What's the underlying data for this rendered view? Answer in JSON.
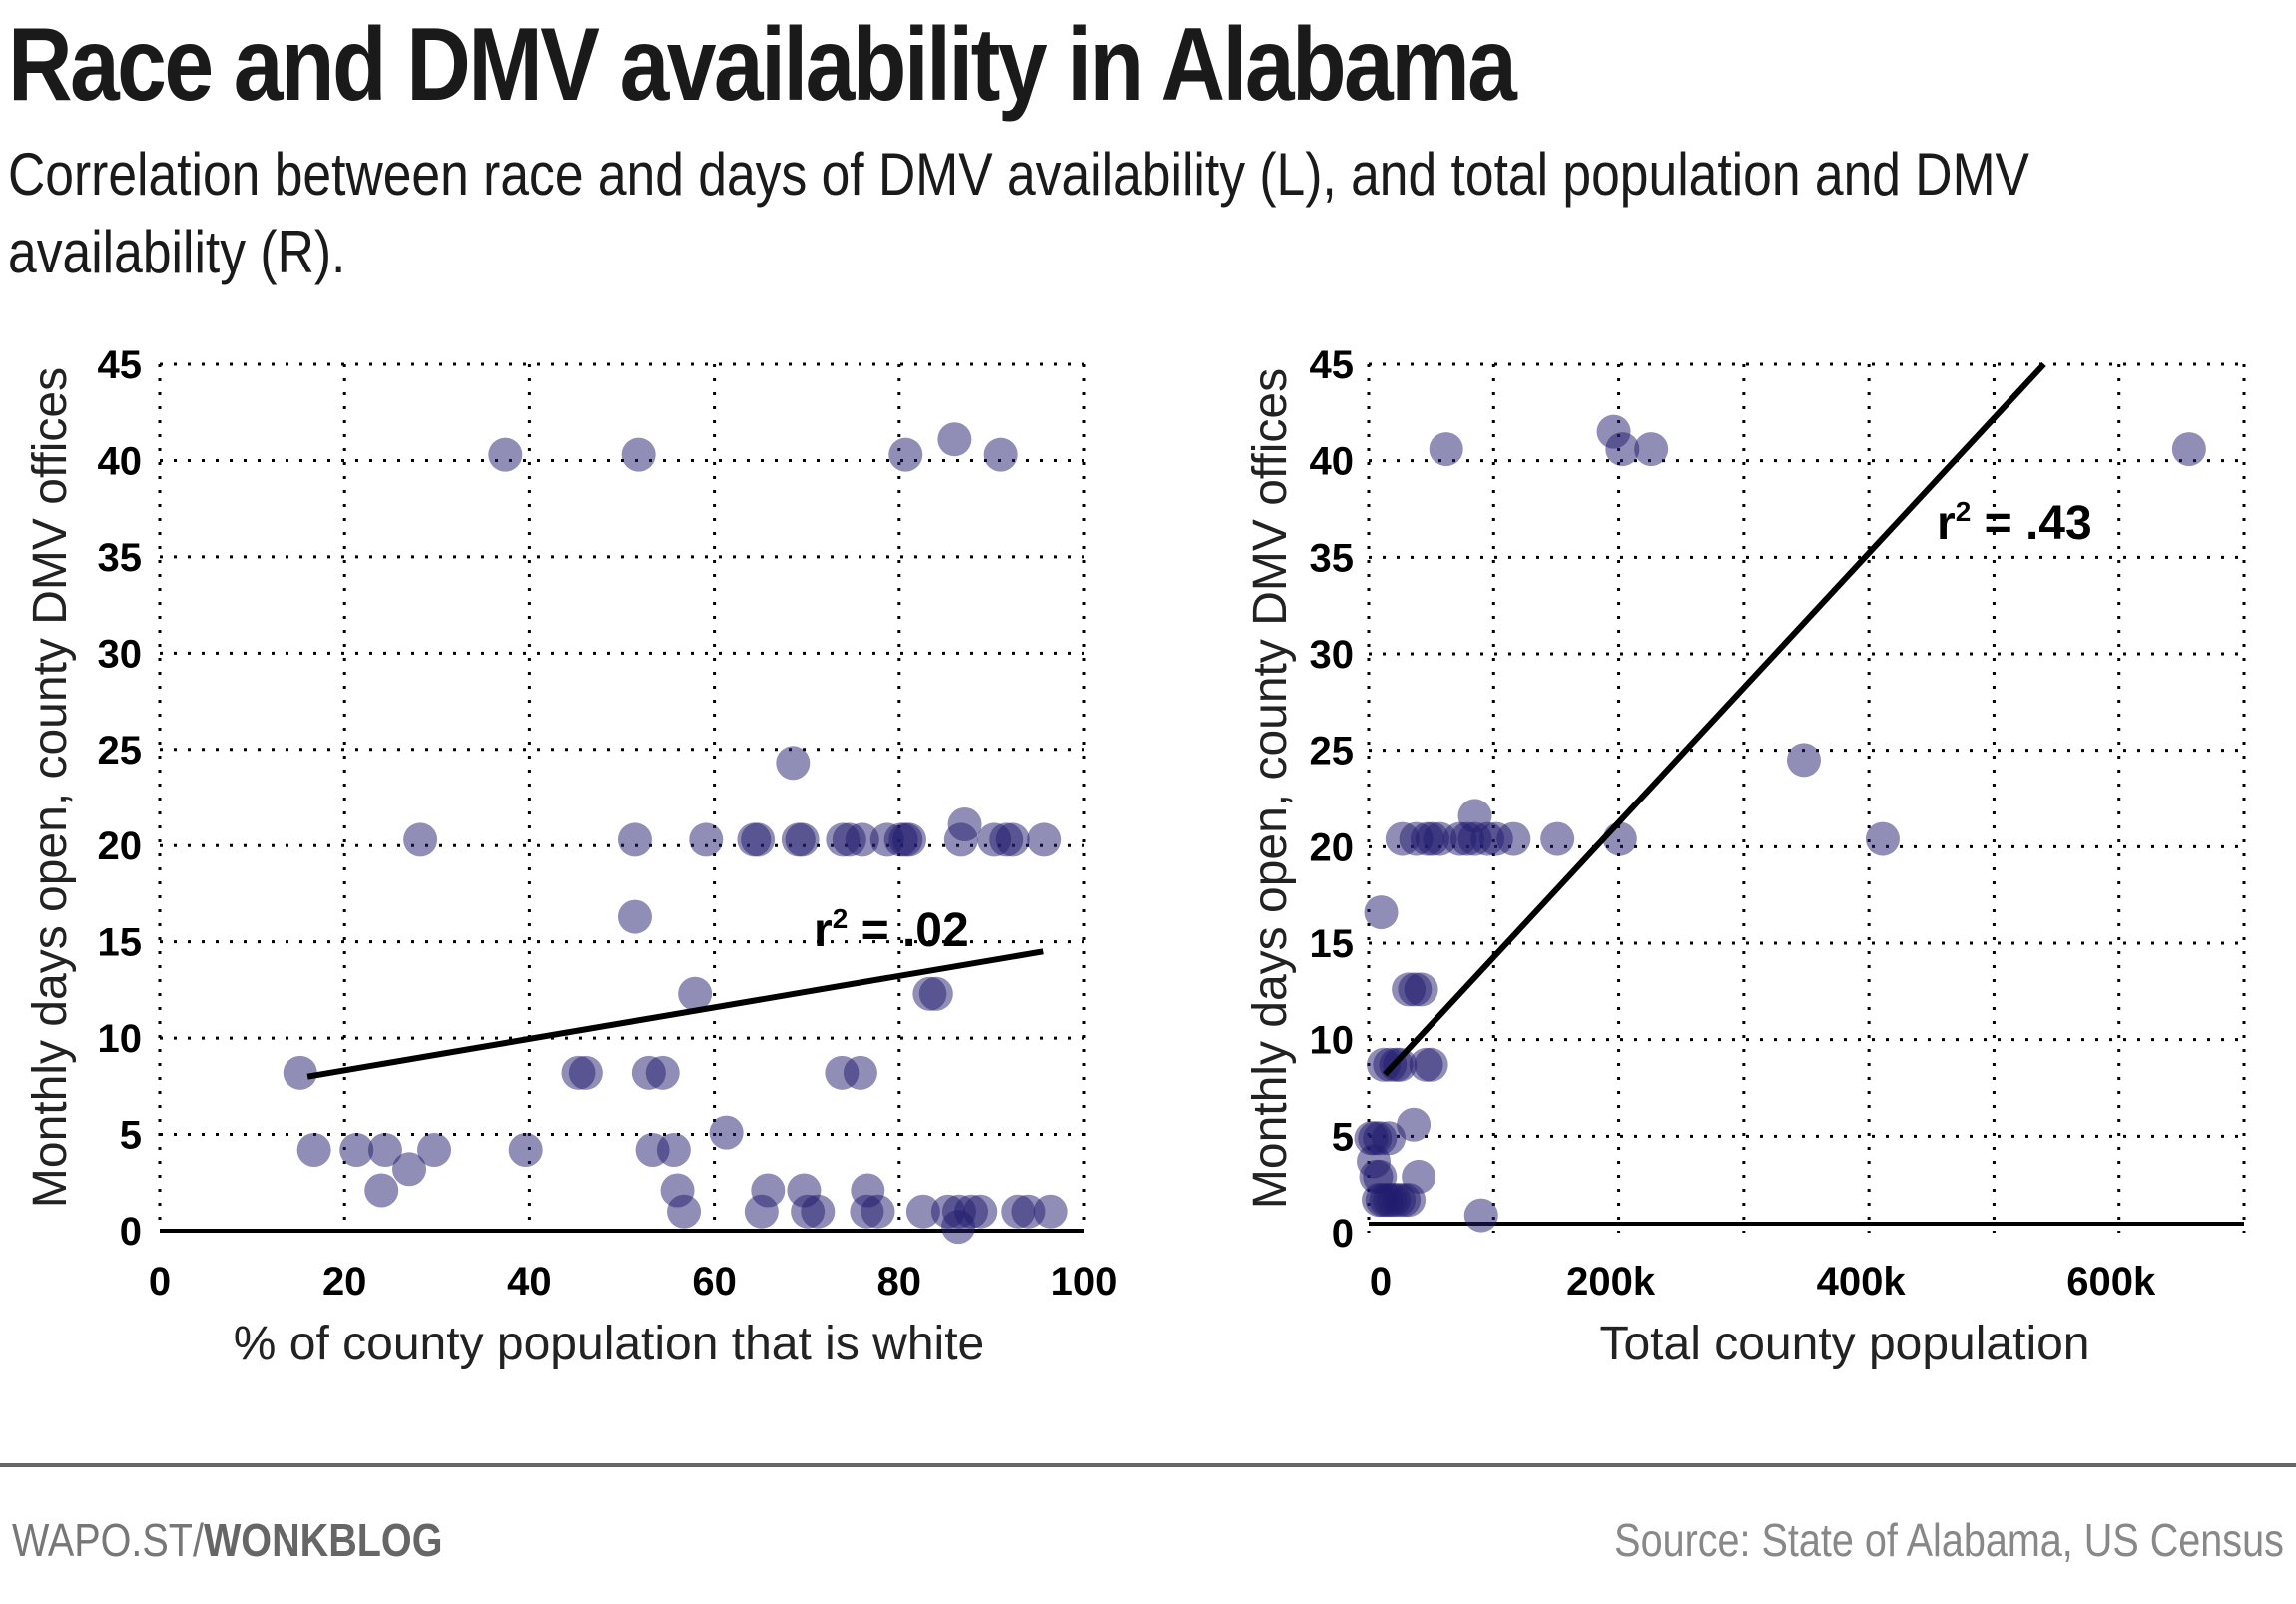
{
  "header": {
    "title": "Race and DMV availability in Alabama",
    "subtitle": "Correlation between race and days of DMV availability (L), and total population and DMV availability (R)."
  },
  "footer": {
    "credit_prefix": "WAPO.ST/",
    "credit_bold": "WONKBLOG",
    "source": "Source: State of Alabama, US Census"
  },
  "colors": {
    "point": "#221c6e",
    "point_opacity": 0.5,
    "grid": "#000000",
    "trendline": "#000000"
  },
  "chart_data": [
    {
      "type": "scatter",
      "title": "",
      "xlabel": "% of county population that is white",
      "ylabel": "Monthly days open, county DMV offices",
      "xlim": [
        0,
        100
      ],
      "ylim": [
        0,
        45
      ],
      "xticks": [
        0,
        20,
        40,
        60,
        80,
        100
      ],
      "xtick_labels": [
        "0",
        "20",
        "40",
        "60",
        "80",
        "100"
      ],
      "yticks": [
        0,
        5,
        10,
        15,
        20,
        25,
        30,
        35,
        40,
        45
      ],
      "ytick_labels": [
        "0",
        "5",
        "10",
        "15",
        "20",
        "25",
        "30",
        "35",
        "40",
        "45"
      ],
      "grid": true,
      "annotation": {
        "text_base": "r",
        "text_sup": "2",
        "text_value": " = .02"
      },
      "trendline": {
        "x": [
          16,
          95.6
        ],
        "y": [
          8.0,
          14.5
        ]
      },
      "points": [
        [
          15.2,
          8.2
        ],
        [
          16.7,
          4.2
        ],
        [
          21.3,
          4.2
        ],
        [
          24.4,
          4.2
        ],
        [
          29.7,
          4.2
        ],
        [
          27.0,
          3.2
        ],
        [
          24.0,
          2.1
        ],
        [
          39.6,
          4.2
        ],
        [
          45.3,
          8.2
        ],
        [
          46.1,
          8.2
        ],
        [
          52.9,
          8.2
        ],
        [
          54.4,
          8.2
        ],
        [
          53.3,
          4.2
        ],
        [
          55.6,
          4.2
        ],
        [
          61.3,
          5.1
        ],
        [
          56.0,
          2.1
        ],
        [
          56.7,
          1.0
        ],
        [
          65.8,
          2.1
        ],
        [
          65.1,
          1.0
        ],
        [
          69.7,
          2.1
        ],
        [
          70.1,
          1.0
        ],
        [
          71.2,
          1.0
        ],
        [
          76.6,
          2.1
        ],
        [
          76.5,
          1.0
        ],
        [
          77.7,
          1.0
        ],
        [
          82.6,
          1.0
        ],
        [
          85.3,
          1.0
        ],
        [
          86.5,
          1.0
        ],
        [
          87.8,
          1.0
        ],
        [
          88.8,
          1.0
        ],
        [
          86.4,
          0.2
        ],
        [
          92.9,
          1.0
        ],
        [
          94.0,
          1.0
        ],
        [
          96.4,
          1.0
        ],
        [
          73.8,
          8.2
        ],
        [
          75.8,
          8.2
        ],
        [
          83.3,
          12.3
        ],
        [
          84.0,
          12.3
        ],
        [
          57.9,
          12.3
        ],
        [
          51.4,
          16.3
        ],
        [
          28.2,
          20.3
        ],
        [
          51.4,
          20.3
        ],
        [
          59.1,
          20.3
        ],
        [
          64.3,
          20.3
        ],
        [
          64.7,
          20.3
        ],
        [
          69.1,
          20.3
        ],
        [
          69.5,
          20.3
        ],
        [
          73.9,
          20.3
        ],
        [
          74.6,
          20.3
        ],
        [
          76.0,
          20.3
        ],
        [
          78.7,
          20.3
        ],
        [
          80.2,
          20.3
        ],
        [
          80.7,
          20.3
        ],
        [
          81.1,
          20.3
        ],
        [
          86.7,
          20.3
        ],
        [
          87.1,
          21.1
        ],
        [
          90.3,
          20.3
        ],
        [
          91.6,
          20.3
        ],
        [
          92.3,
          20.3
        ],
        [
          95.7,
          20.3
        ],
        [
          68.5,
          24.3
        ],
        [
          37.4,
          40.3
        ],
        [
          51.8,
          40.3
        ],
        [
          80.7,
          40.3
        ],
        [
          86.0,
          41.1
        ],
        [
          91.0,
          40.3
        ]
      ]
    },
    {
      "type": "scatter",
      "title": "",
      "xlabel": "Total county population",
      "ylabel": "Monthly days open, county DMV offices",
      "xlim": [
        0,
        700000
      ],
      "ylim": [
        0,
        45
      ],
      "xticks": [
        0,
        200000,
        400000,
        600000
      ],
      "xtick_labels": [
        "0",
        "200k",
        "400k",
        "600k"
      ],
      "xgrid": [
        0,
        100000,
        200000,
        300000,
        400000,
        500000,
        600000,
        700000
      ],
      "yticks": [
        0,
        5,
        10,
        15,
        20,
        25,
        30,
        35,
        40,
        45
      ],
      "ytick_labels": [
        "0",
        "5",
        "10",
        "15",
        "20",
        "25",
        "30",
        "35",
        "40",
        "45"
      ],
      "grid": true,
      "annotation": {
        "text_base": "r",
        "text_sup": "2",
        "text_value": " = .43"
      },
      "trendline": {
        "x": [
          13000,
          540000
        ],
        "y": [
          8.2,
          45
        ]
      },
      "points": [
        [
          62000,
          40.6
        ],
        [
          196000,
          41.5
        ],
        [
          203000,
          40.6
        ],
        [
          226000,
          40.6
        ],
        [
          656000,
          40.6
        ],
        [
          348000,
          24.5
        ],
        [
          411000,
          20.4
        ],
        [
          201000,
          20.4
        ],
        [
          151000,
          20.4
        ],
        [
          116000,
          20.4
        ],
        [
          102000,
          20.4
        ],
        [
          95000,
          20.4
        ],
        [
          85000,
          20.4
        ],
        [
          79000,
          20.4
        ],
        [
          73000,
          20.4
        ],
        [
          57000,
          20.4
        ],
        [
          51000,
          20.4
        ],
        [
          47000,
          20.4
        ],
        [
          38000,
          20.4
        ],
        [
          27000,
          20.4
        ],
        [
          85000,
          21.6
        ],
        [
          10000,
          16.6
        ],
        [
          32000,
          12.6
        ],
        [
          37000,
          12.6
        ],
        [
          42000,
          12.6
        ],
        [
          12000,
          8.7
        ],
        [
          17000,
          8.7
        ],
        [
          22000,
          8.7
        ],
        [
          25000,
          8.7
        ],
        [
          46000,
          8.7
        ],
        [
          50000,
          8.7
        ],
        [
          36000,
          5.6
        ],
        [
          2000,
          4.9
        ],
        [
          5000,
          4.9
        ],
        [
          9000,
          4.9
        ],
        [
          16000,
          4.9
        ],
        [
          4000,
          3.7
        ],
        [
          6000,
          2.9
        ],
        [
          9000,
          2.9
        ],
        [
          40000,
          2.9
        ],
        [
          8000,
          1.7
        ],
        [
          11000,
          1.7
        ],
        [
          14000,
          1.7
        ],
        [
          17000,
          1.7
        ],
        [
          20000,
          1.7
        ],
        [
          24000,
          1.7
        ],
        [
          28000,
          1.7
        ],
        [
          32000,
          1.7
        ],
        [
          90000,
          0.9
        ]
      ]
    }
  ]
}
